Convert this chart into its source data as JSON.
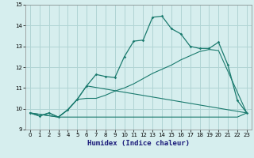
{
  "title": "",
  "xlabel": "Humidex (Indice chaleur)",
  "ylabel": "",
  "background_color": "#d6eeee",
  "grid_color": "#b0d4d4",
  "line_color": "#1a7a6e",
  "xlim": [
    -0.5,
    23.5
  ],
  "ylim": [
    9.0,
    15.0
  ],
  "yticks": [
    9,
    10,
    11,
    12,
    13,
    14,
    15
  ],
  "xticks": [
    0,
    1,
    2,
    3,
    4,
    5,
    6,
    7,
    8,
    9,
    10,
    11,
    12,
    13,
    14,
    15,
    16,
    17,
    18,
    19,
    20,
    21,
    22,
    23
  ],
  "line1_x": [
    0,
    1,
    2,
    3,
    4,
    5,
    6,
    7,
    8,
    9,
    10,
    11,
    12,
    13,
    14,
    15,
    16,
    17,
    18,
    19,
    20,
    21,
    22,
    23
  ],
  "line1_y": [
    9.8,
    9.65,
    9.8,
    9.6,
    9.95,
    10.45,
    11.1,
    11.65,
    11.55,
    11.5,
    12.5,
    13.25,
    13.3,
    14.4,
    14.45,
    13.85,
    13.6,
    13.0,
    12.9,
    12.9,
    13.2,
    12.1,
    10.4,
    9.8
  ],
  "line2_x": [
    0,
    3,
    4,
    5,
    6,
    7,
    8,
    9,
    10,
    11,
    12,
    13,
    14,
    15,
    16,
    17,
    18,
    19,
    20,
    23
  ],
  "line2_y": [
    9.8,
    9.6,
    9.95,
    10.45,
    10.5,
    10.5,
    10.65,
    10.85,
    11.0,
    11.2,
    11.45,
    11.7,
    11.9,
    12.1,
    12.35,
    12.55,
    12.75,
    12.85,
    12.8,
    9.8
  ],
  "line3_x": [
    0,
    3,
    4,
    5,
    6,
    23
  ],
  "line3_y": [
    9.8,
    9.6,
    9.95,
    10.45,
    11.1,
    9.8
  ],
  "line4_x": [
    0,
    1,
    2,
    3,
    4,
    5,
    6,
    7,
    8,
    9,
    10,
    11,
    12,
    13,
    14,
    15,
    16,
    17,
    18,
    19,
    20,
    21,
    22,
    23
  ],
  "line4_y": [
    9.8,
    9.65,
    9.8,
    9.6,
    9.6,
    9.6,
    9.6,
    9.6,
    9.6,
    9.6,
    9.6,
    9.6,
    9.6,
    9.6,
    9.6,
    9.6,
    9.6,
    9.6,
    9.6,
    9.6,
    9.6,
    9.6,
    9.6,
    9.8
  ]
}
